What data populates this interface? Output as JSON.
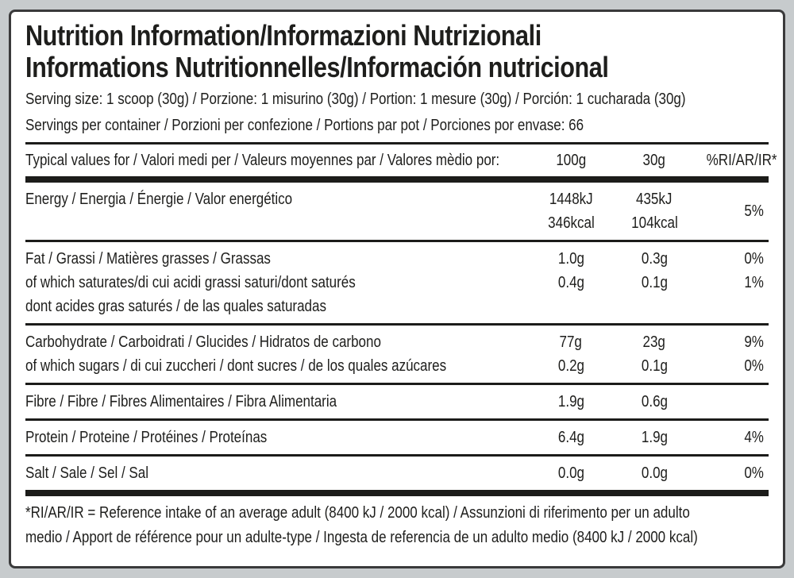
{
  "colors": {
    "page_background": "#c7cbcd",
    "card_background": "#ffffff",
    "border": "#3a3a3b",
    "ink": "#1e1e1c",
    "rule": "#1c1c1a"
  },
  "title": {
    "line1": "Nutrition Information/Informazioni Nutrizionali",
    "line2": "Informations Nutritionnelles/Información nutricional"
  },
  "serving": {
    "size_line": "Serving size: 1 scoop (30g) / Porzione: 1 misurino (30g) / Portion: 1 mesure (30g) / Porción: 1 cucharada (30g)",
    "per_container_line": "Servings per container / Porzioni per confezione / Portions par pot / Porciones por envase: 66"
  },
  "table": {
    "header": {
      "label": "Typical values for / Valori medi per / Valeurs moyennes par / Valores mèdio por:",
      "col_100g": "100g",
      "col_30g": "30g",
      "col_pct": "%RI/AR/IR*"
    },
    "rows": {
      "energy": {
        "label": "Energy / Energia / Énergie / Valor energético",
        "v100_line1": "1448kJ",
        "v100_line2": "346kcal",
        "v30_line1": "435kJ",
        "v30_line2": "104kcal",
        "pct": "5%"
      },
      "fat": {
        "label_line1": "Fat / Grassi / Matières grasses / Grassas",
        "label_line2": "of which saturates/di cui acidi grassi saturi/dont saturés",
        "label_line3": "dont acides gras saturés / de las quales saturadas",
        "v100_line1": "1.0g",
        "v100_line2": "0.4g",
        "v30_line1": "0.3g",
        "v30_line2": "0.1g",
        "pct_line1": "0%",
        "pct_line2": "1%"
      },
      "carbohydrate": {
        "label_line1": "Carbohydrate / Carboidrati / Glucides / Hidratos de carbono",
        "label_line2": "of which sugars / di cui zuccheri / dont sucres / de los quales azúcares",
        "v100_line1": "77g",
        "v100_line2": "0.2g",
        "v30_line1": "23g",
        "v30_line2": "0.1g",
        "pct_line1": "9%",
        "pct_line2": "0%"
      },
      "fibre": {
        "label": "Fibre / Fibre / Fibres Alimentaires / Fibra Alimentaria",
        "v100": "1.9g",
        "v30": "0.6g",
        "pct": ""
      },
      "protein": {
        "label": "Protein / Proteine / Protéines / Proteínas",
        "v100": "6.4g",
        "v30": "1.9g",
        "pct": "4%"
      },
      "salt": {
        "label": "Salt / Sale / Sel / Sal",
        "v100": "0.0g",
        "v30": "0.0g",
        "pct": "0%"
      }
    }
  },
  "footnote": {
    "line1": "*RI/AR/IR = Reference intake of an average adult (8400 kJ / 2000 kcal)  / Assunzioni di riferimento per un adulto",
    "line2": "medio / Apport de référence pour un adulte-type / Ingesta de referencia de un adulto medio (8400 kJ / 2000 kcal)"
  }
}
